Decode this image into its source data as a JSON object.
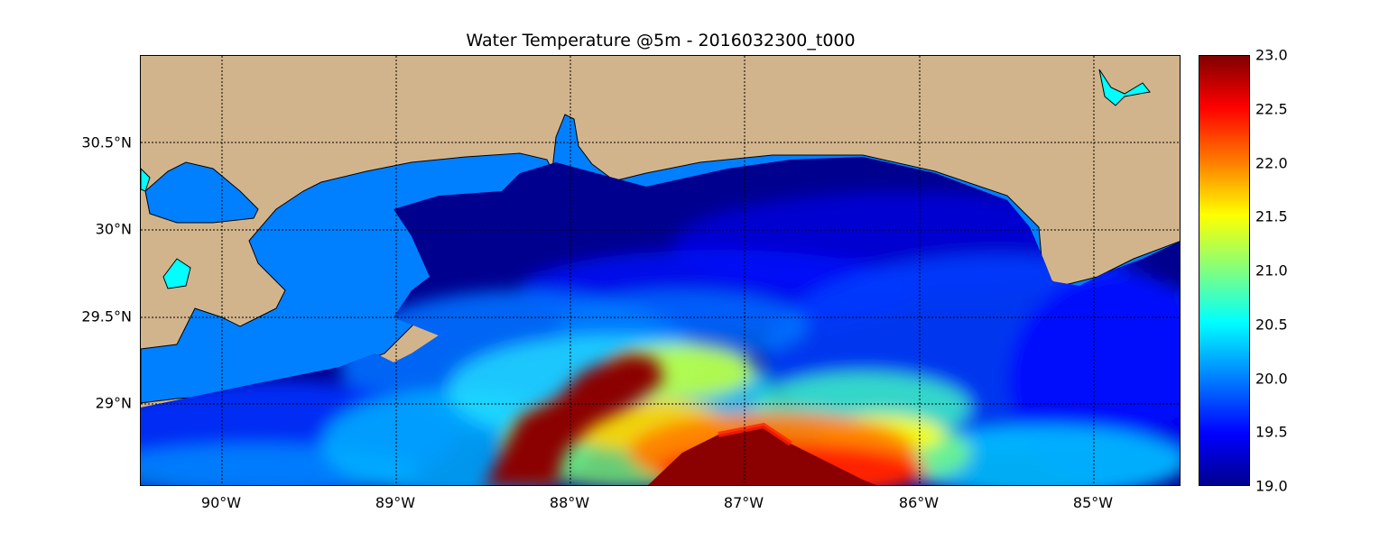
{
  "title": "Water Temperature @5m - 2016032300_t000",
  "map": {
    "x_ticks": [
      "90°W",
      "89°W",
      "88°W",
      "87°W",
      "86°W",
      "85°W"
    ],
    "y_ticks": [
      "30.5°N",
      "30°N",
      "29.5°N",
      "29°N"
    ],
    "grid": true,
    "land_color": "#d2b48c",
    "inland_water_color": "#0080ff",
    "lake_color": "#00ffff"
  },
  "colorbar": {
    "colormap": "jet",
    "min": 19.0,
    "max": 23.0,
    "tick_labels": [
      "23.0",
      "22.5",
      "22.0",
      "21.5",
      "21.0",
      "20.5",
      "20.0",
      "19.5",
      "19.0"
    ]
  }
}
